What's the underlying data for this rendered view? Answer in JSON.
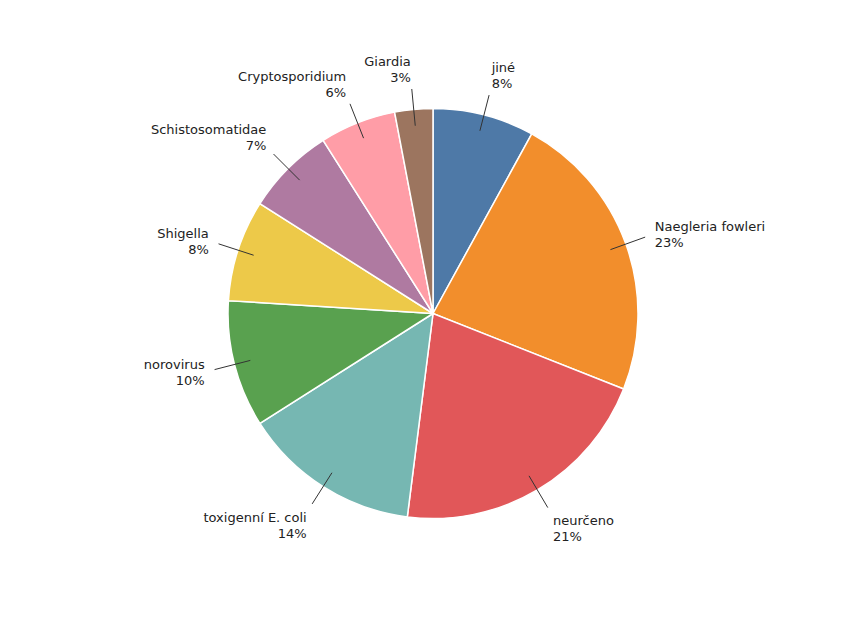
{
  "chart_data": {
    "type": "pie",
    "categories": [
      "jiné",
      "Naegleria fowleri",
      "neurčeno",
      "toxigenní E. coli",
      "norovirus",
      "Shigella",
      "Schistosomatidae",
      "Cryptosporidium",
      "Giardia"
    ],
    "values": [
      8,
      23,
      21,
      14,
      10,
      8,
      7,
      6,
      3
    ],
    "value_labels": [
      "8%",
      "23%",
      "21%",
      "14%",
      "10%",
      "8%",
      "7%",
      "6%",
      "3%"
    ],
    "data_labels": true
  }
}
